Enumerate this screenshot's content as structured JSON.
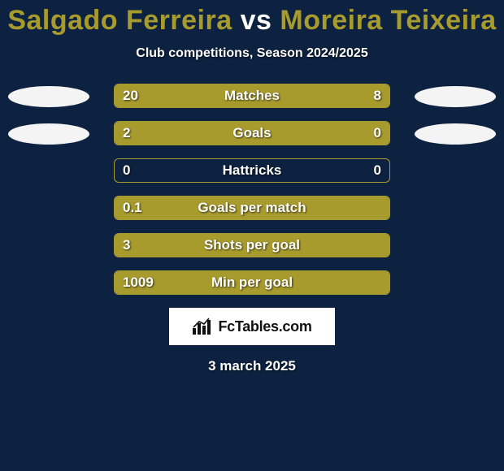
{
  "colors": {
    "page_bg": "#0d2240",
    "accent": "#a89b2e",
    "text": "#ffffff",
    "ellipse": "#f4f4f4",
    "logo_bg": "#ffffff",
    "logo_text": "#111111"
  },
  "header": {
    "player1": "Salgado Ferreira",
    "vs": "vs",
    "player2": "Moreira Teixeira",
    "subtitle": "Club competitions, Season 2024/2025"
  },
  "bars": {
    "type": "split-bar",
    "track_border_color": "#a89b2e",
    "fill_color": "#a89b2e",
    "label_fontsize": 17,
    "value_fontsize": 17,
    "rows": [
      {
        "label": "Matches",
        "left_value": "20",
        "right_value": "8",
        "left_pct": 71,
        "right_pct": 29,
        "show_left_ellipse": true,
        "show_right_ellipse": true
      },
      {
        "label": "Goals",
        "left_value": "2",
        "right_value": "0",
        "left_pct": 80,
        "right_pct": 20,
        "show_left_ellipse": true,
        "show_right_ellipse": true
      },
      {
        "label": "Hattricks",
        "left_value": "0",
        "right_value": "0",
        "left_pct": 0,
        "right_pct": 0,
        "show_left_ellipse": false,
        "show_right_ellipse": false
      },
      {
        "label": "Goals per match",
        "left_value": "0.1",
        "right_value": "",
        "left_pct": 100,
        "right_pct": 0,
        "show_left_ellipse": false,
        "show_right_ellipse": false
      },
      {
        "label": "Shots per goal",
        "left_value": "3",
        "right_value": "",
        "left_pct": 100,
        "right_pct": 0,
        "show_left_ellipse": false,
        "show_right_ellipse": false
      },
      {
        "label": "Min per goal",
        "left_value": "1009",
        "right_value": "",
        "left_pct": 100,
        "right_pct": 0,
        "show_left_ellipse": false,
        "show_right_ellipse": false
      }
    ]
  },
  "logo": {
    "text": "FcTables.com",
    "icon_name": "fctables-chart-icon"
  },
  "footer": {
    "date": "3 march 2025"
  }
}
